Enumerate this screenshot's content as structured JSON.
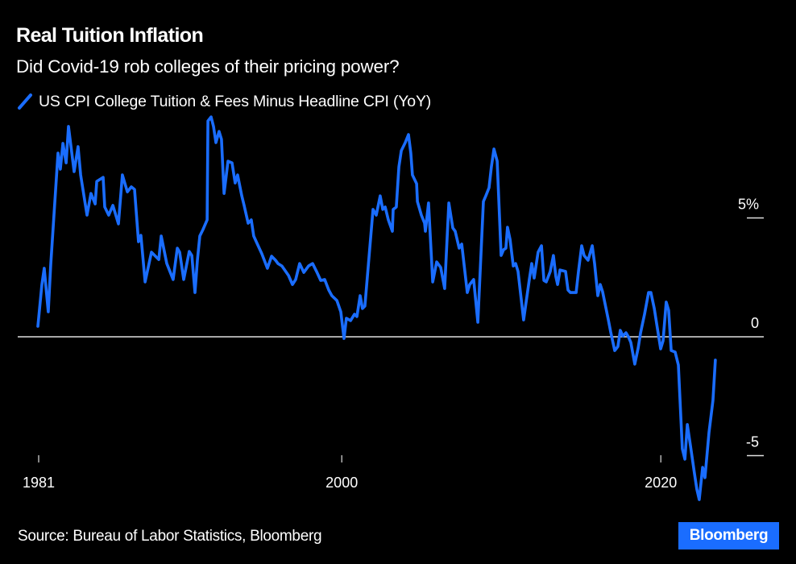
{
  "header": {
    "title": "Real Tuition Inflation",
    "subtitle": "Did Covid-19 rob colleges of their pricing power?"
  },
  "footer": {
    "source": "Source: Bureau of Labor Statistics, Bloomberg",
    "logo": "Bloomberg"
  },
  "colors": {
    "background": "#000000",
    "series": "#1a6dff",
    "axis": "#ffffff",
    "logo_bg": "#1a6dff"
  },
  "chart_data": {
    "type": "line",
    "title": "Real Tuition Inflation",
    "subtitle": "Did Covid-19 rob colleges of their pricing power?",
    "xlabel": "",
    "ylabel": "",
    "xlim": [
      1981,
      2024.5
    ],
    "ylim": [
      -7,
      9.5
    ],
    "x_ticks": [
      {
        "value": 1981,
        "label": "1981"
      },
      {
        "value": 2000,
        "label": "2000"
      },
      {
        "value": 2020,
        "label": "2020"
      }
    ],
    "y_ticks": [
      {
        "value": 5,
        "label": "5%"
      },
      {
        "value": 0,
        "label": "0"
      },
      {
        "value": -5,
        "label": "-5"
      }
    ],
    "y_axis_side": "right",
    "zero_line": true,
    "grid": false,
    "legend_position": "top-left",
    "source": "Source: Bureau of Labor Statistics, Bloomberg",
    "series": [
      {
        "name": "US CPI College Tuition & Fees Minus Headline CPI (YoY)",
        "color": "#1a6dff",
        "x": [
          1980.95,
          1981.2,
          1981.35,
          1981.6,
          1981.76,
          1982.21,
          1982.36,
          1982.52,
          1982.72,
          1982.87,
          1983.22,
          1983.47,
          1983.63,
          1984.03,
          1984.28,
          1984.54,
          1984.64,
          1985.04,
          1985.14,
          1985.39,
          1985.65,
          1986.0,
          1986.25,
          1986.56,
          1986.81,
          1987.01,
          1987.26,
          1987.41,
          1987.67,
          1988.07,
          1988.53,
          1988.68,
          1989.03,
          1989.43,
          1989.69,
          1989.84,
          1990.09,
          1990.44,
          1990.6,
          1990.8,
          1990.95,
          1991.1,
          1991.3,
          1991.56,
          1991.61,
          1991.81,
          1991.96,
          1992.11,
          1992.31,
          1992.46,
          1992.62,
          1992.87,
          1993.12,
          1993.32,
          1993.47,
          1993.73,
          1993.88,
          1994.13,
          1994.33,
          1994.48,
          1994.64,
          1994.99,
          1995.34,
          1995.6,
          1995.85,
          1996.0,
          1996.25,
          1996.66,
          1996.91,
          1997.11,
          1997.36,
          1997.62,
          1997.92,
          1998.17,
          1998.42,
          1998.68,
          1998.93,
          1999.18,
          1999.38,
          1999.69,
          1999.94,
          2000.14,
          2000.29,
          2000.55,
          2000.8,
          2000.95,
          2001.15,
          2001.3,
          2001.45,
          2001.66,
          2001.96,
          2002.16,
          2002.41,
          2002.57,
          2002.72,
          2002.92,
          2003.17,
          2003.22,
          2003.42,
          2003.58,
          2003.73,
          2003.98,
          2004.18,
          2004.33,
          2004.43,
          2004.69,
          2004.74,
          2004.99,
          2005.19,
          2005.24,
          2005.44,
          2005.7,
          2005.95,
          2006.2,
          2006.45,
          2006.71,
          2006.96,
          2007.11,
          2007.36,
          2007.52,
          2007.87,
          2008.02,
          2008.27,
          2008.53,
          2008.88,
          2009.03,
          2009.23,
          2009.38,
          2009.54,
          2009.74,
          2009.99,
          2010.14,
          2010.29,
          2010.39,
          2010.55,
          2010.75,
          2010.9,
          2011.05,
          2011.4,
          2011.76,
          2011.91,
          2012.06,
          2012.31,
          2012.52,
          2012.67,
          2012.82,
          2013.07,
          2013.27,
          2013.42,
          2013.53,
          2013.68,
          2014.03,
          2014.18,
          2014.33,
          2014.69,
          2014.84,
          2015.04,
          2015.19,
          2015.44,
          2015.7,
          2015.85,
          2016.05,
          2016.2,
          2016.35,
          2016.71,
          2016.86,
          2017.11,
          2017.31,
          2017.46,
          2017.62,
          2017.82,
          2017.97,
          2018.12,
          2018.37,
          2018.58,
          2018.73,
          2018.98,
          2019.23,
          2019.38,
          2019.59,
          2019.74,
          2019.99,
          2020.14,
          2020.34,
          2020.49,
          2020.65,
          2020.9,
          2021.1,
          2021.35,
          2021.51,
          2021.66,
          2021.86,
          2022.11,
          2022.26,
          2022.41,
          2022.62,
          2022.77,
          2023.02,
          2023.27,
          2023.42
        ],
        "values": [
          0.44,
          2.2,
          2.88,
          1.05,
          3.05,
          7.73,
          7.05,
          8.14,
          7.32,
          8.85,
          6.95,
          8.0,
          6.81,
          5.12,
          6.03,
          5.59,
          6.54,
          6.71,
          5.46,
          5.12,
          5.53,
          4.75,
          6.81,
          6.1,
          6.31,
          6.2,
          4.0,
          4.27,
          2.31,
          3.56,
          3.25,
          4.24,
          3.08,
          2.41,
          3.73,
          3.56,
          2.41,
          3.59,
          3.42,
          1.86,
          3.22,
          4.24,
          4.51,
          4.92,
          9.08,
          9.25,
          8.85,
          8.17,
          8.64,
          8.31,
          6.03,
          7.39,
          7.32,
          6.47,
          6.81,
          5.93,
          5.53,
          4.78,
          4.92,
          4.24,
          4.0,
          3.49,
          2.88,
          3.39,
          3.22,
          3.08,
          2.98,
          2.58,
          2.2,
          2.41,
          3.08,
          2.71,
          2.98,
          3.08,
          2.75,
          2.37,
          2.41,
          1.97,
          1.73,
          1.53,
          1.05,
          -0.07,
          0.78,
          0.68,
          0.95,
          0.85,
          1.73,
          1.19,
          1.29,
          2.98,
          5.36,
          5.12,
          5.93,
          5.36,
          5.46,
          4.92,
          4.44,
          5.36,
          5.46,
          7.15,
          7.83,
          8.17,
          8.51,
          7.73,
          6.81,
          6.44,
          5.69,
          5.12,
          4.78,
          4.44,
          5.63,
          2.31,
          3.15,
          2.92,
          2.03,
          5.63,
          4.58,
          4.44,
          3.73,
          3.9,
          1.86,
          2.2,
          2.41,
          0.61,
          5.69,
          5.93,
          6.27,
          7.15,
          7.9,
          7.39,
          3.42,
          3.66,
          3.73,
          4.61,
          4.1,
          2.98,
          3.08,
          2.75,
          0.71,
          2.41,
          3.08,
          2.47,
          3.56,
          3.83,
          2.37,
          2.31,
          2.75,
          3.42,
          2.54,
          2.2,
          2.81,
          2.75,
          1.97,
          1.86,
          1.86,
          2.75,
          3.83,
          3.42,
          3.22,
          3.83,
          3.08,
          1.73,
          2.2,
          1.9,
          0.71,
          0.2,
          -0.58,
          -0.41,
          0.27,
          0.03,
          0.17,
          0.0,
          -0.24,
          -1.15,
          -0.47,
          0.17,
          0.95,
          1.86,
          1.86,
          1.19,
          0.54,
          -0.51,
          -0.17,
          1.46,
          1.12,
          -0.58,
          -0.64,
          -1.19,
          -4.71,
          -5.15,
          -3.69,
          -4.58,
          -5.76,
          -6.41,
          -6.85,
          -5.49,
          -5.93,
          -4.03,
          -2.68,
          -0.98
        ]
      }
    ]
  }
}
